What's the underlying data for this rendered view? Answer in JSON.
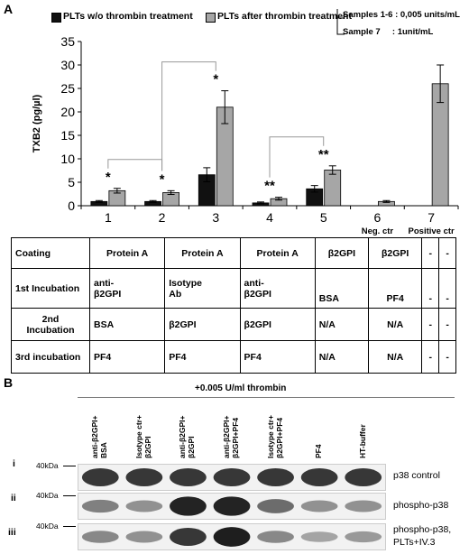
{
  "panel_a_label": "A",
  "panel_b_label": "B",
  "legend": {
    "series1": "PLTs w/o thrombin treatment",
    "series2": "PLTs after thrombin treatment",
    "note1": "Samples 1-6 : 0,005 units/mL",
    "note2": "Sample 7     : 1unit/mL"
  },
  "colors": {
    "series1": "#111111",
    "series2": "#a6a6a6",
    "band": "#1a1a1a"
  },
  "chart_data": {
    "type": "bar",
    "categories": [
      "1",
      "2",
      "3",
      "4",
      "5",
      "6",
      "7"
    ],
    "category_sublabels": [
      "",
      "",
      "",
      "",
      "",
      "Neg. ctr",
      "Positive ctr"
    ],
    "ylabel": "TXB2 (pg/µl)",
    "ylim": [
      0,
      35
    ],
    "yticks": [
      0,
      5,
      10,
      15,
      20,
      25,
      30,
      35
    ],
    "series": [
      {
        "name": "PLTs w/o thrombin treatment",
        "values": [
          0.9,
          0.9,
          6.6,
          0.6,
          3.6,
          0,
          0
        ],
        "errors": [
          0.2,
          0.2,
          1.5,
          0.2,
          0.7,
          0,
          0
        ]
      },
      {
        "name": "PLTs after thrombin treatment",
        "values": [
          3.2,
          2.8,
          21.0,
          1.5,
          7.6,
          0.9,
          26.0
        ],
        "errors": [
          0.5,
          0.4,
          3.5,
          0.3,
          0.9,
          0.2,
          4.0
        ]
      }
    ],
    "annotations": [
      {
        "label": "*",
        "category": "1"
      },
      {
        "label": "*",
        "category": "2"
      },
      {
        "label": "*",
        "category": "3"
      },
      {
        "label": "**",
        "category": "4"
      },
      {
        "label": "**",
        "category": "5"
      }
    ],
    "comparisons": [
      [
        "1",
        "2"
      ],
      [
        "2",
        "3"
      ],
      [
        "4",
        "5"
      ]
    ],
    "grid": false
  },
  "table": {
    "headers": [
      "Coating",
      "Protein A",
      "Protein A",
      "Protein A",
      "β2GPI",
      "β2GPI",
      "-",
      "-"
    ],
    "rows": [
      {
        "label": "1st Incubation",
        "cells": [
          "anti-\nβ2GPI",
          "Isotype\nAb",
          "anti-\nβ2GPI",
          "BSA",
          "PF4",
          "-",
          "-"
        ]
      },
      {
        "label": "2nd\nIncubation",
        "cells": [
          "BSA",
          "β2GPI",
          "β2GPI",
          "N/A",
          "N/A",
          "-",
          "-"
        ]
      },
      {
        "label": "3rd incubation",
        "cells": [
          "PF4",
          "PF4",
          "PF4",
          "N/A",
          "N/A",
          "-",
          "-"
        ]
      }
    ]
  },
  "blot": {
    "header": "+0.005 U/ml thrombin",
    "lanes": [
      "anti-β2GPI+\nBSA",
      "Isotype ctr+\nβ2GPI",
      "anti-β2GPI+\nβ2GPI",
      "anti-β2GPI+\nβ2GPI+PF4",
      "Isotype ctr+\nβ2GPI+PF4",
      "PF4",
      "HT-buffer"
    ],
    "rows": [
      {
        "roman": "i",
        "kda": "40kDa",
        "name": "p38 control",
        "intensity": [
          0.85,
          0.85,
          0.85,
          0.85,
          0.85,
          0.85,
          0.85
        ]
      },
      {
        "roman": "ii",
        "kda": "40kDa",
        "name": "phospho-p38",
        "intensity": [
          0.45,
          0.35,
          0.95,
          0.95,
          0.55,
          0.35,
          0.35
        ]
      },
      {
        "roman": "iii",
        "kda": "40kDa",
        "name": "phospho-p38,\nPLTs+IV.3",
        "intensity": [
          0.4,
          0.35,
          0.85,
          0.98,
          0.4,
          0.25,
          0.3
        ]
      }
    ]
  }
}
